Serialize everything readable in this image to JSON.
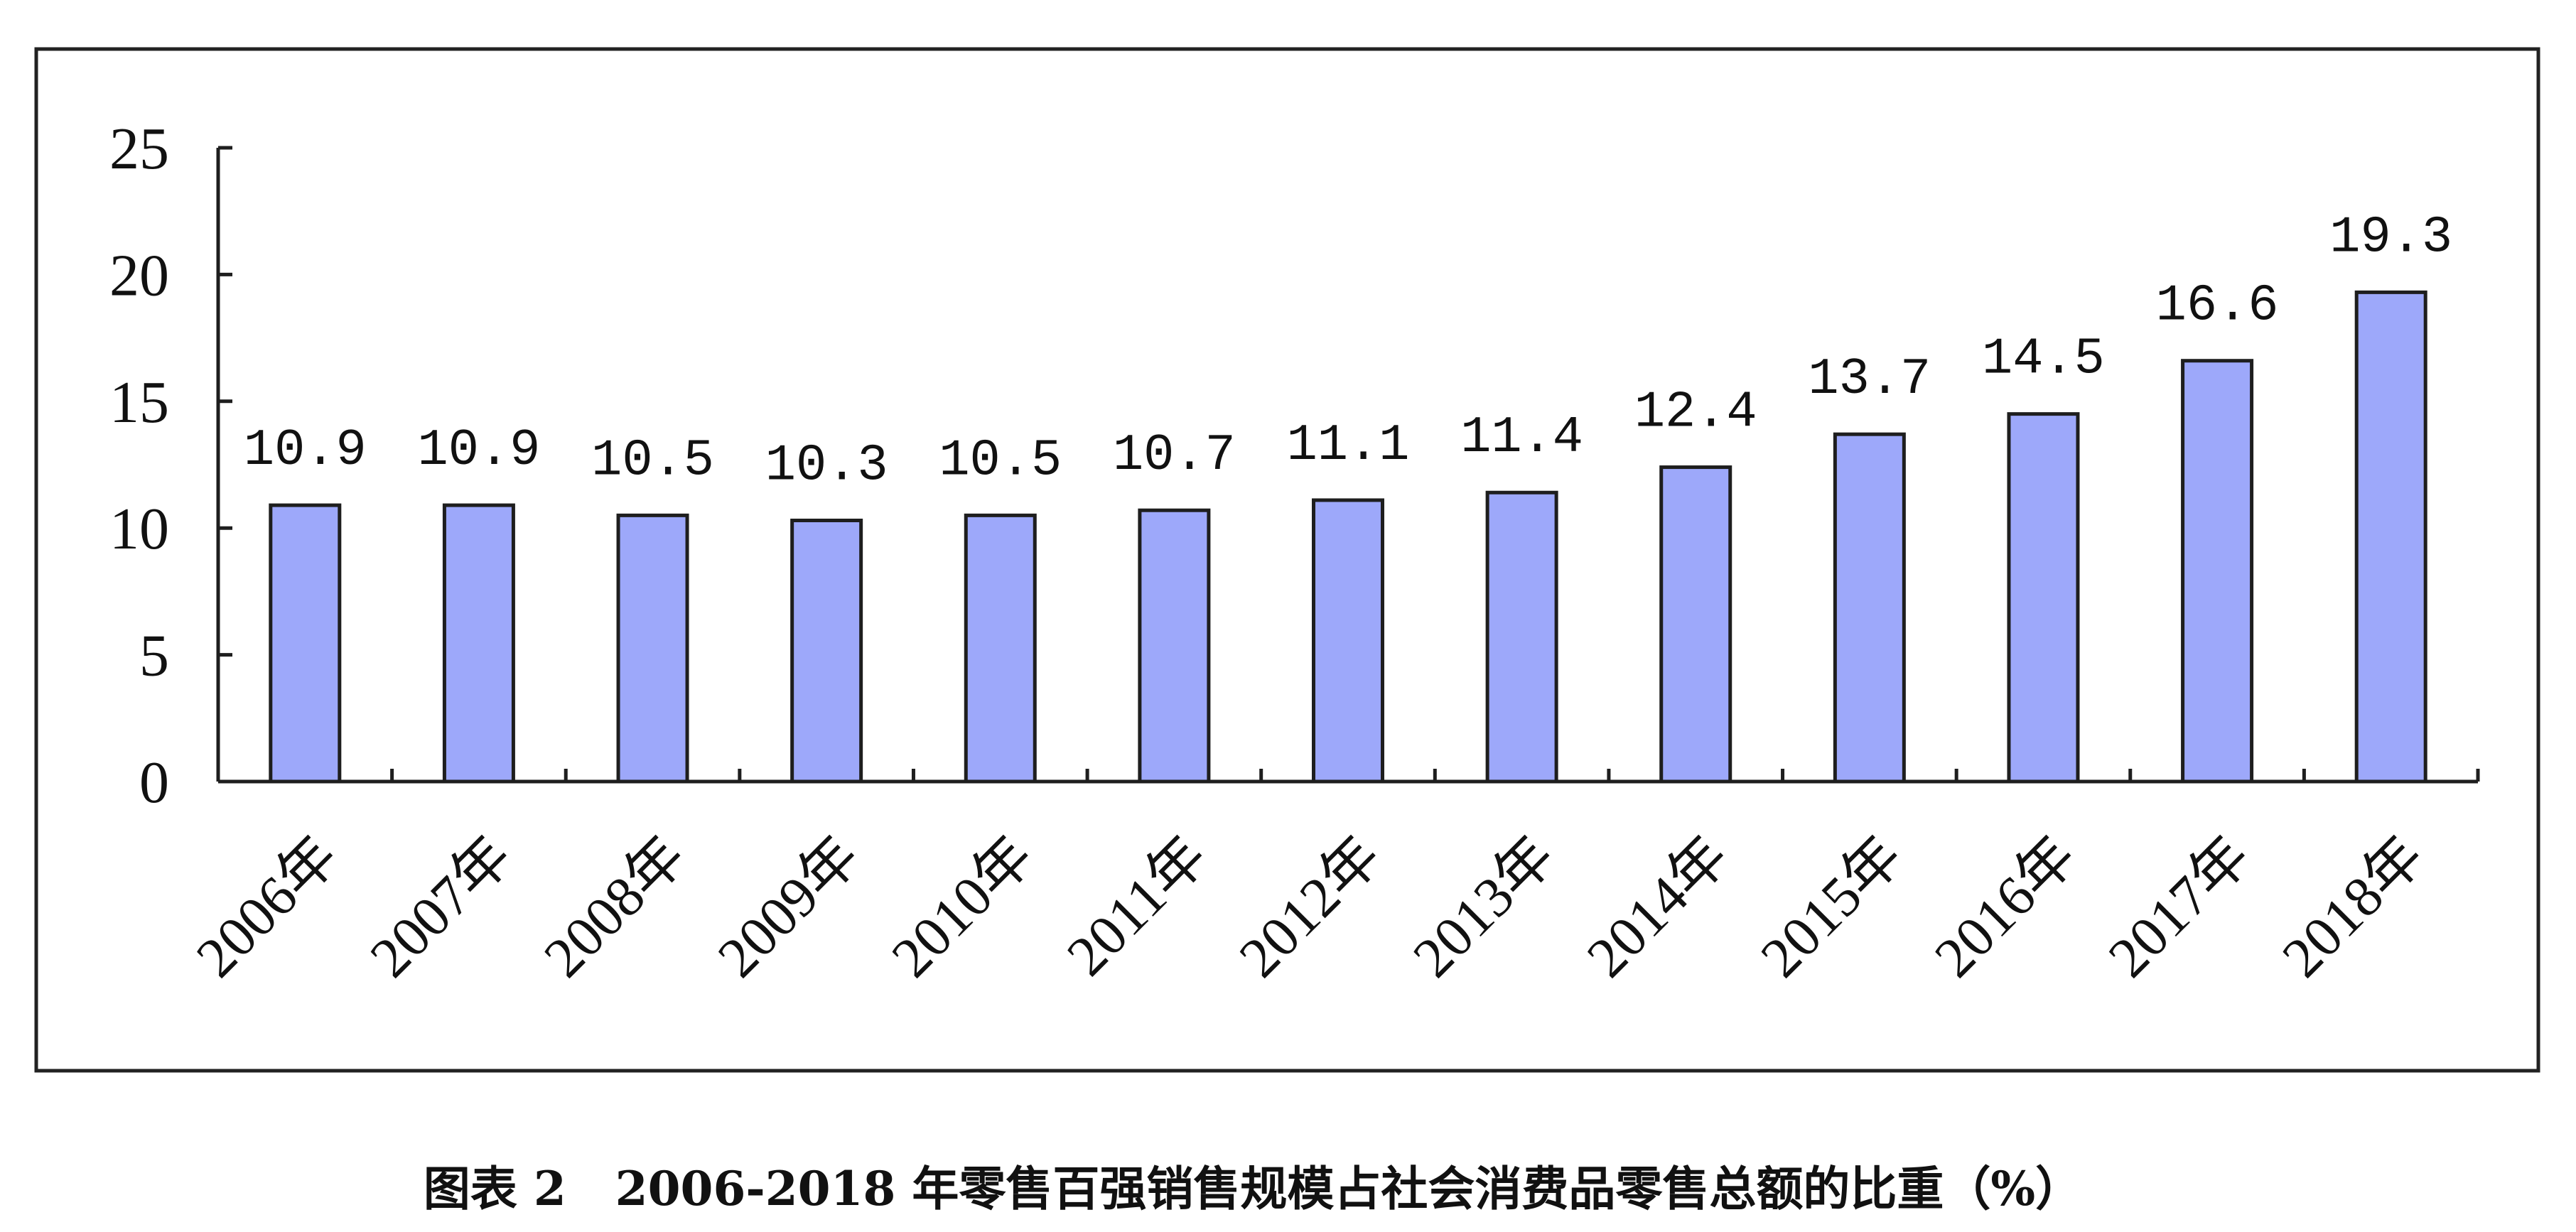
{
  "chart_data": {
    "type": "bar",
    "title": "图表 2   2006-2018 年零售百强销售规模占社会消费品零售总额的比重（%）",
    "categories": [
      "2006年",
      "2007年",
      "2008年",
      "2009年",
      "2010年",
      "2011年",
      "2012年",
      "2013年",
      "2014年",
      "2015年",
      "2016年",
      "2017年",
      "2018年"
    ],
    "values": [
      10.9,
      10.9,
      10.5,
      10.3,
      10.5,
      10.7,
      11.1,
      11.4,
      12.4,
      13.7,
      14.5,
      16.6,
      19.3
    ],
    "ylim": [
      0,
      25
    ],
    "yticks": [
      0,
      5,
      10,
      15,
      20,
      25
    ],
    "grid": false,
    "legend": "none",
    "data_labels": true
  },
  "colors": {
    "bar": "#9DA8FA",
    "bar_edge": "#1E1E1E",
    "axis": "#1E1E1E",
    "frame": "#222222"
  }
}
